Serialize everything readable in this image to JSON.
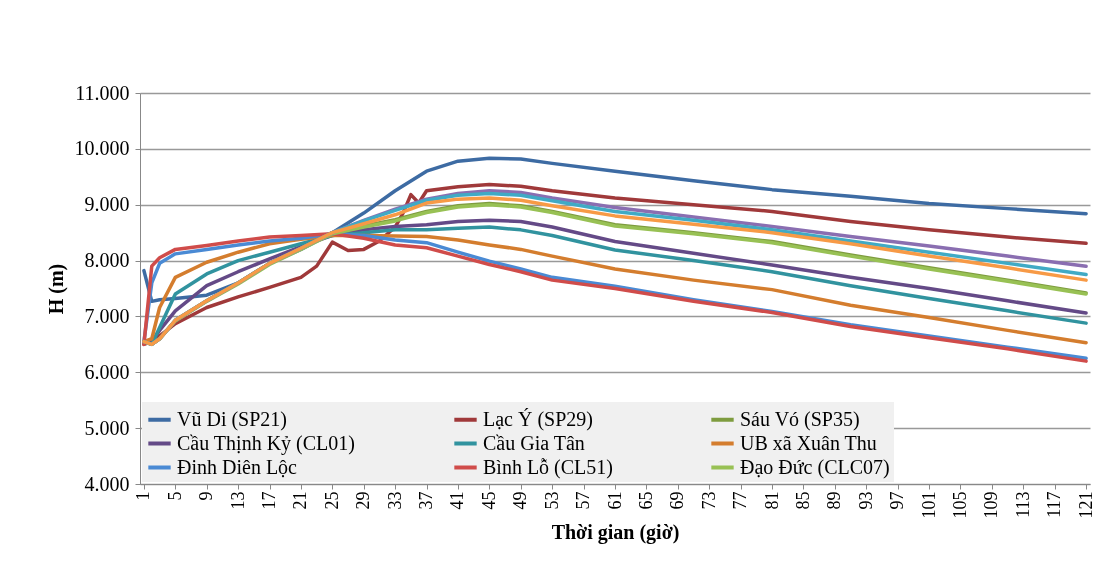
{
  "chart_data": {
    "type": "line",
    "xlabel": "Thời gian (giờ)",
    "ylabel": "H (m)",
    "x": [
      1,
      2,
      3,
      5,
      9,
      13,
      17,
      21,
      25,
      29,
      33,
      37,
      41,
      45,
      49,
      53,
      61,
      71,
      81,
      91,
      101,
      111,
      121
    ],
    "series": [
      {
        "name": "Vũ Di (SP21)",
        "color": "#3d6ba3",
        "values": [
          7.82,
          7.27,
          7.3,
          7.32,
          7.38,
          7.6,
          7.95,
          8.2,
          8.5,
          8.85,
          9.25,
          9.6,
          9.78,
          9.83,
          9.82,
          9.74,
          9.6,
          9.43,
          9.27,
          9.15,
          9.02,
          8.93,
          8.84
        ]
      },
      {
        "name": "Lạc Ý (SP29)",
        "color": "#a0393a",
        "x": [
          1,
          2,
          3,
          5,
          9,
          13,
          17,
          21,
          23,
          25,
          27,
          29,
          31,
          33,
          34,
          35,
          36,
          37,
          41,
          45,
          49,
          53,
          61,
          71,
          81,
          91,
          101,
          111,
          121
        ],
        "values": [
          6.5,
          6.55,
          6.65,
          6.87,
          7.16,
          7.35,
          7.52,
          7.7,
          7.9,
          8.33,
          8.18,
          8.2,
          8.35,
          8.6,
          8.85,
          9.18,
          9.03,
          9.25,
          9.32,
          9.36,
          9.33,
          9.25,
          9.12,
          9.0,
          8.88,
          8.7,
          8.55,
          8.42,
          8.31
        ]
      },
      {
        "name": "Sáu Vó (SP35)",
        "color": "#7e9c3f",
        "values": [
          6.55,
          6.5,
          6.6,
          6.93,
          7.28,
          7.6,
          7.95,
          8.22,
          8.5,
          8.62,
          8.73,
          8.88,
          8.98,
          9.02,
          8.98,
          8.88,
          8.64,
          8.5,
          8.34,
          8.1,
          7.87,
          7.65,
          7.42
        ]
      },
      {
        "name": "Cầu Thịnh Kỷ (CL01)",
        "color": "#644a87",
        "values": [
          6.55,
          6.55,
          6.75,
          7.1,
          7.55,
          7.8,
          8.03,
          8.25,
          8.45,
          8.55,
          8.61,
          8.64,
          8.7,
          8.72,
          8.7,
          8.6,
          8.34,
          8.13,
          7.92,
          7.7,
          7.5,
          7.28,
          7.06
        ]
      },
      {
        "name": "Cầu Gia Tân",
        "color": "#31939f",
        "values": [
          6.55,
          6.5,
          6.8,
          7.4,
          7.76,
          8.0,
          8.15,
          8.3,
          8.45,
          8.5,
          8.55,
          8.55,
          8.58,
          8.6,
          8.55,
          8.45,
          8.19,
          8.0,
          7.8,
          7.55,
          7.32,
          7.1,
          6.88
        ]
      },
      {
        "name": "UB xã Xuân Thu",
        "color": "#d47d2e",
        "values": [
          6.55,
          6.6,
          7.16,
          7.7,
          7.97,
          8.15,
          8.3,
          8.38,
          8.45,
          8.45,
          8.44,
          8.43,
          8.37,
          8.28,
          8.2,
          8.08,
          7.85,
          7.65,
          7.48,
          7.2,
          6.98,
          6.75,
          6.53
        ]
      },
      {
        "name": "Đinh Diên Lộc",
        "color": "#4a8ad4",
        "values": [
          6.55,
          7.6,
          7.95,
          8.12,
          8.2,
          8.28,
          8.35,
          8.4,
          8.48,
          8.45,
          8.37,
          8.32,
          8.15,
          7.99,
          7.85,
          7.7,
          7.54,
          7.3,
          7.09,
          6.85,
          6.65,
          6.45,
          6.25
        ]
      },
      {
        "name": "Bình Lỗ (CL51)",
        "color": "#d04c4a",
        "values": [
          6.5,
          7.9,
          8.05,
          8.2,
          8.27,
          8.35,
          8.42,
          8.45,
          8.48,
          8.4,
          8.28,
          8.23,
          8.08,
          7.93,
          7.8,
          7.65,
          7.5,
          7.27,
          7.07,
          6.82,
          6.62,
          6.42,
          6.2
        ]
      },
      {
        "name": "Đạo Đức (CLC07)",
        "color": "#98c154",
        "values": [
          6.55,
          6.5,
          6.6,
          6.92,
          7.27,
          7.58,
          7.93,
          8.2,
          8.48,
          8.6,
          8.71,
          8.86,
          8.96,
          9.0,
          8.96,
          8.86,
          8.62,
          8.48,
          8.32,
          8.08,
          7.85,
          7.63,
          7.4
        ]
      },
      {
        "color": "#8a6eb1",
        "values": [
          6.55,
          6.5,
          6.6,
          6.93,
          7.28,
          7.6,
          7.95,
          8.22,
          8.5,
          8.72,
          8.92,
          9.1,
          9.2,
          9.25,
          9.22,
          9.12,
          8.95,
          8.78,
          8.61,
          8.43,
          8.26,
          8.08,
          7.9
        ]
      },
      {
        "color": "#40aac5",
        "values": [
          6.55,
          6.5,
          6.6,
          6.93,
          7.28,
          7.6,
          7.95,
          8.22,
          8.5,
          8.71,
          8.9,
          9.08,
          9.17,
          9.2,
          9.17,
          9.07,
          8.88,
          8.72,
          8.55,
          8.35,
          8.15,
          7.95,
          7.75
        ]
      },
      {
        "color": "#f79a46",
        "values": [
          6.55,
          6.5,
          6.6,
          6.93,
          7.28,
          7.6,
          7.95,
          8.22,
          8.5,
          8.66,
          8.82,
          9.03,
          9.1,
          9.12,
          9.08,
          8.98,
          8.8,
          8.65,
          8.5,
          8.3,
          8.08,
          7.87,
          7.65
        ]
      }
    ],
    "xlim": [
      0.5,
      121.5
    ],
    "xticks": [
      1,
      5,
      9,
      13,
      17,
      21,
      25,
      29,
      33,
      37,
      41,
      45,
      49,
      53,
      57,
      61,
      65,
      69,
      73,
      77,
      81,
      85,
      89,
      93,
      97,
      101,
      105,
      109,
      113,
      117,
      121
    ],
    "ylim": [
      4,
      11
    ],
    "yticks": [
      {
        "value": 4,
        "label": "4.000"
      },
      {
        "value": 5,
        "label": "5.000"
      },
      {
        "value": 6,
        "label": "6.000"
      },
      {
        "value": 7,
        "label": "7.000"
      },
      {
        "value": 8,
        "label": "8.000"
      },
      {
        "value": 9,
        "label": "9.000"
      },
      {
        "value": 10,
        "label": "10.000"
      },
      {
        "value": 11,
        "label": "11.000"
      }
    ],
    "grid": "y",
    "legend": "bottom",
    "marker": "none",
    "line_style": "solid"
  }
}
